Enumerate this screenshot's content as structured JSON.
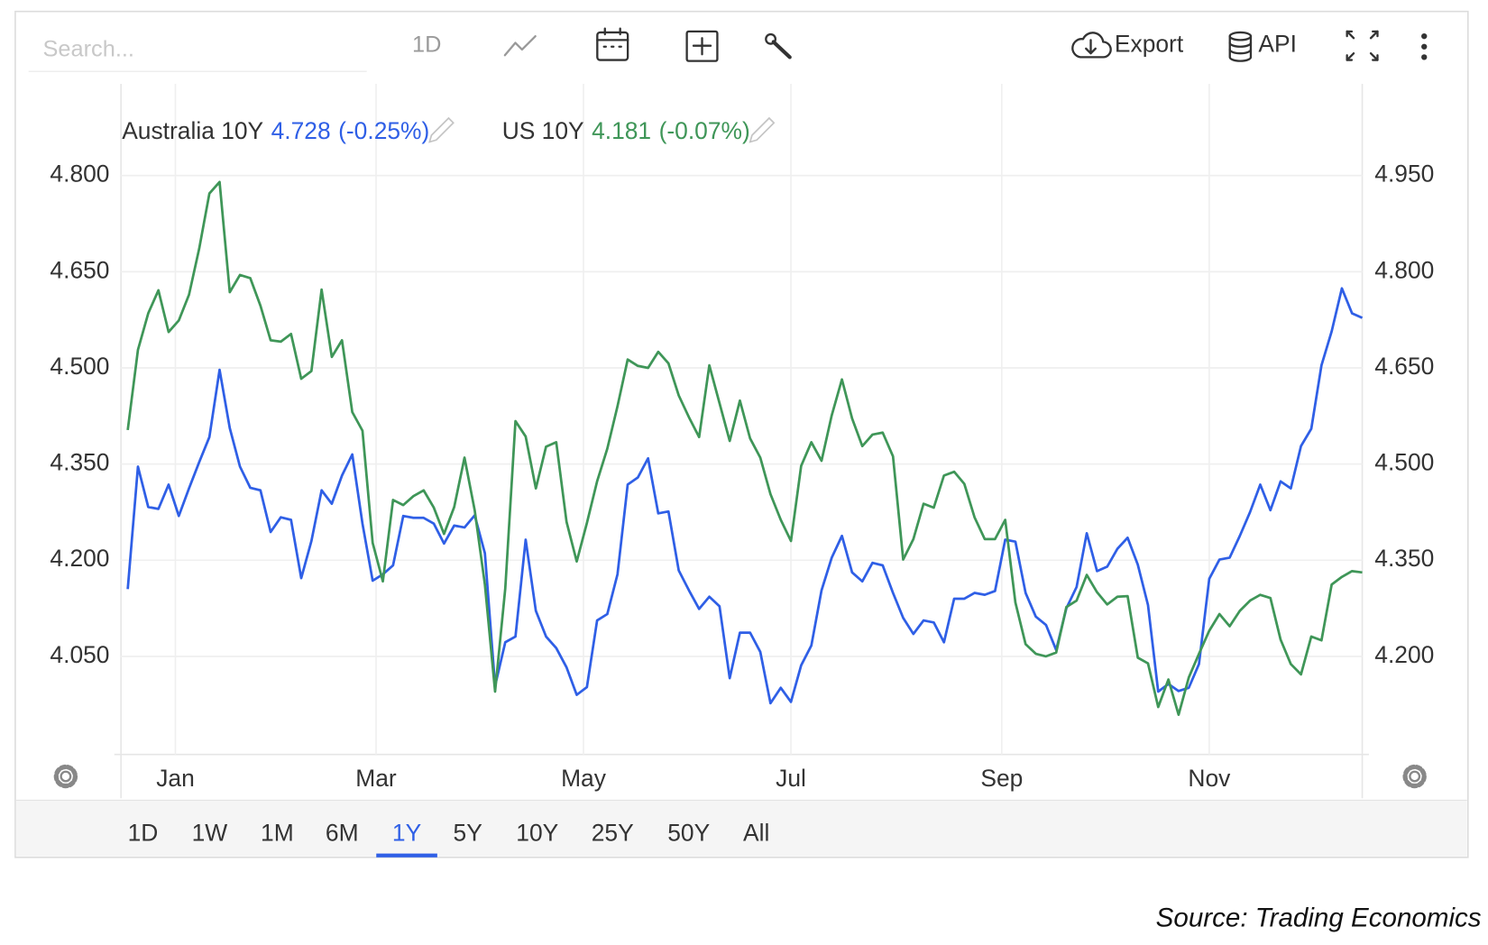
{
  "toolbar": {
    "search_placeholder": "Search...",
    "interval": "1D",
    "export": "Export",
    "api": "API"
  },
  "range_selector": {
    "options": [
      "1D",
      "1W",
      "1M",
      "6M",
      "1Y",
      "5Y",
      "10Y",
      "25Y",
      "50Y",
      "All"
    ],
    "selected": 4
  },
  "source": "Source: Trading Economics",
  "chart_data": {
    "type": "line",
    "x": [
      -14,
      -11,
      -8,
      -5,
      -2,
      1,
      4,
      7,
      10,
      13,
      16,
      19,
      22,
      25,
      28,
      31,
      34,
      37,
      40,
      43,
      46,
      49,
      52,
      55,
      58,
      61,
      64,
      67,
      70,
      73,
      76,
      79,
      82,
      85,
      88,
      91,
      94,
      97,
      100,
      103,
      106,
      109,
      112,
      115,
      118,
      121,
      124,
      127,
      130,
      133,
      136,
      139,
      142,
      145,
      148,
      151,
      154,
      157,
      160,
      163,
      166,
      169,
      172,
      175,
      178,
      181,
      184,
      187,
      190,
      193,
      196,
      199,
      202,
      205,
      208,
      211,
      214,
      217,
      220,
      223,
      226,
      229,
      232,
      235,
      238,
      241,
      244,
      247,
      250,
      253,
      256,
      259,
      262,
      265,
      268,
      271,
      274,
      277,
      280,
      283,
      286,
      289,
      292,
      295,
      298,
      301,
      304,
      307,
      310,
      313,
      316,
      319,
      322,
      325,
      328,
      331,
      334,
      337,
      340,
      343,
      346,
      349
    ],
    "xlim": [
      -16,
      349
    ],
    "xticks": [
      {
        "value": 0,
        "label": "Jan"
      },
      {
        "value": 59,
        "label": "Mar"
      },
      {
        "value": 120,
        "label": "May"
      },
      {
        "value": 181,
        "label": "Jul"
      },
      {
        "value": 243,
        "label": "Sep"
      },
      {
        "value": 304,
        "label": "Nov"
      }
    ],
    "ylim": [
      3.897,
      4.943
    ],
    "yticks": [
      {
        "value": 4.05,
        "label": "4.050"
      },
      {
        "value": 4.2,
        "label": "4.200"
      },
      {
        "value": 4.35,
        "label": "4.350"
      },
      {
        "value": 4.5,
        "label": "4.500"
      },
      {
        "value": 4.65,
        "label": "4.650"
      },
      {
        "value": 4.8,
        "label": "4.800"
      }
    ],
    "y2lim": [
      4.047,
      5.093
    ],
    "y2ticks": [
      {
        "value": 4.2,
        "label": "4.200"
      },
      {
        "value": 4.35,
        "label": "4.350"
      },
      {
        "value": 4.5,
        "label": "4.500"
      },
      {
        "value": 4.65,
        "label": "4.650"
      },
      {
        "value": 4.8,
        "label": "4.800"
      },
      {
        "value": 4.95,
        "label": "4.950"
      }
    ],
    "grid": true,
    "series": [
      {
        "name": "Australia 10Y",
        "color": "#2f5fe6",
        "axis": "y2",
        "change": {
          "value": -0.25,
          "label": "(-0.25%)"
        },
        "values": [
          4.305,
          4.496,
          4.433,
          4.43,
          4.468,
          4.419,
          4.462,
          4.503,
          4.542,
          4.647,
          4.556,
          4.496,
          4.463,
          4.459,
          4.394,
          4.417,
          4.413,
          4.322,
          4.38,
          4.459,
          4.438,
          4.482,
          4.515,
          4.407,
          4.318,
          4.328,
          4.342,
          4.419,
          4.416,
          4.416,
          4.407,
          4.376,
          4.404,
          4.401,
          4.42,
          4.361,
          4.154,
          4.222,
          4.231,
          4.382,
          4.271,
          4.231,
          4.213,
          4.183,
          4.14,
          4.152,
          4.256,
          4.266,
          4.328,
          4.468,
          4.479,
          4.509,
          4.423,
          4.426,
          4.334,
          4.303,
          4.274,
          4.293,
          4.278,
          4.166,
          4.237,
          4.237,
          4.207,
          4.127,
          4.151,
          4.129,
          4.186,
          4.217,
          4.303,
          4.354,
          4.388,
          4.331,
          4.317,
          4.346,
          4.342,
          4.299,
          4.26,
          4.235,
          4.256,
          4.253,
          4.222,
          4.29,
          4.29,
          4.299,
          4.296,
          4.302,
          4.382,
          4.379,
          4.299,
          4.262,
          4.249,
          4.21,
          4.275,
          4.308,
          4.392,
          4.333,
          4.34,
          4.368,
          4.385,
          4.343,
          4.28,
          4.145,
          4.157,
          4.146,
          4.151,
          4.188,
          4.321,
          4.351,
          4.354,
          4.388,
          4.425,
          4.468,
          4.428,
          4.473,
          4.462,
          4.528,
          4.555,
          4.654,
          4.707,
          4.774,
          4.735,
          4.728
        ]
      },
      {
        "name": "US 10Y",
        "color": "#3f9658",
        "change": {
          "value": -0.07,
          "label": "(-0.07%)"
        },
        "values": [
          4.403,
          4.528,
          4.585,
          4.621,
          4.556,
          4.574,
          4.614,
          4.686,
          4.772,
          4.79,
          4.618,
          4.645,
          4.64,
          4.597,
          4.543,
          4.541,
          4.553,
          4.483,
          4.495,
          4.622,
          4.517,
          4.543,
          4.431,
          4.402,
          4.227,
          4.167,
          4.294,
          4.286,
          4.3,
          4.309,
          4.282,
          4.241,
          4.283,
          4.36,
          4.278,
          4.162,
          3.995,
          4.156,
          4.417,
          4.393,
          4.312,
          4.377,
          4.384,
          4.26,
          4.198,
          4.258,
          4.323,
          4.374,
          4.44,
          4.513,
          4.503,
          4.5,
          4.525,
          4.507,
          4.457,
          4.423,
          4.392,
          4.504,
          4.445,
          4.386,
          4.449,
          4.39,
          4.36,
          4.303,
          4.263,
          4.23,
          4.347,
          4.384,
          4.355,
          4.426,
          4.482,
          4.421,
          4.378,
          4.396,
          4.399,
          4.362,
          4.201,
          4.233,
          4.288,
          4.282,
          4.332,
          4.338,
          4.319,
          4.267,
          4.233,
          4.233,
          4.263,
          4.134,
          4.069,
          4.054,
          4.05,
          4.056,
          4.127,
          4.137,
          4.177,
          4.15,
          4.131,
          4.143,
          4.144,
          4.048,
          4.039,
          3.971,
          4.014,
          3.959,
          4.017,
          4.054,
          4.09,
          4.116,
          4.097,
          4.121,
          4.137,
          4.146,
          4.141,
          4.076,
          4.038,
          4.022,
          4.081,
          4.075,
          4.162,
          4.174,
          4.183,
          4.181
        ]
      }
    ]
  }
}
